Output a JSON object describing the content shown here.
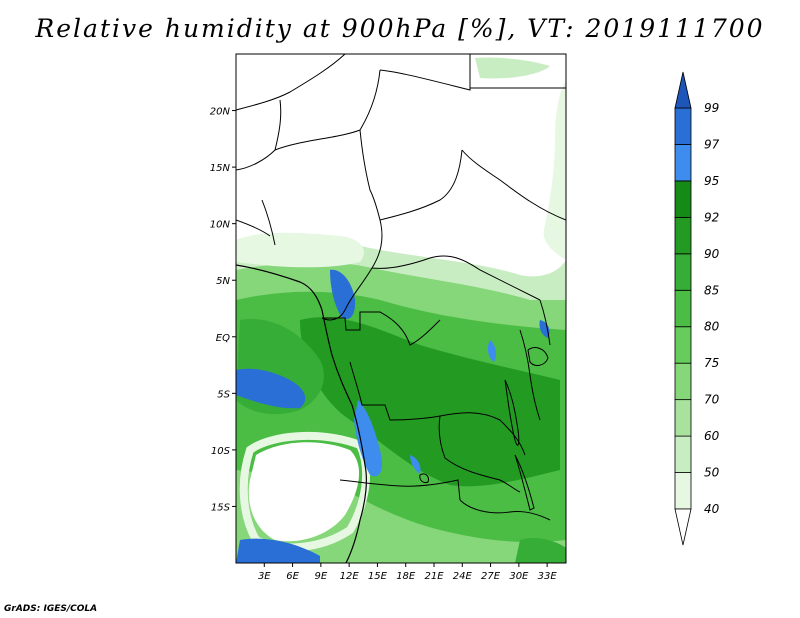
{
  "title": "Relative humidity at 900hPa [%], VT: 2019111700",
  "credit": "GrADS: IGES/COLA",
  "map": {
    "lon_range": [
      0,
      35
    ],
    "lat_range": [
      -20,
      25
    ],
    "lat_ticks": [
      "20N",
      "15N",
      "10N",
      "5N",
      "EQ",
      "5S",
      "10S",
      "15S"
    ],
    "lat_tick_values": [
      20,
      15,
      10,
      5,
      0,
      -5,
      -10,
      -15
    ],
    "lon_ticks": [
      "3E",
      "6E",
      "9E",
      "12E",
      "15E",
      "18E",
      "21E",
      "24E",
      "27E",
      "30E",
      "33E"
    ],
    "lon_tick_values": [
      3,
      6,
      9,
      12,
      15,
      18,
      21,
      24,
      27,
      30,
      33
    ]
  },
  "colorbar": {
    "levels": [
      "40",
      "50",
      "60",
      "70",
      "75",
      "80",
      "85",
      "90",
      "92",
      "95",
      "97",
      "99"
    ],
    "colors": [
      "#e6f7e2",
      "#c9edc2",
      "#a8e29c",
      "#86d67a",
      "#66cc5c",
      "#4bbd45",
      "#36ad36",
      "#239b23",
      "#168a16",
      "#3d8cee",
      "#2a6fd6",
      "#1d55b8"
    ],
    "below_color": "#ffffff",
    "above_color": "#1d55b8"
  }
}
